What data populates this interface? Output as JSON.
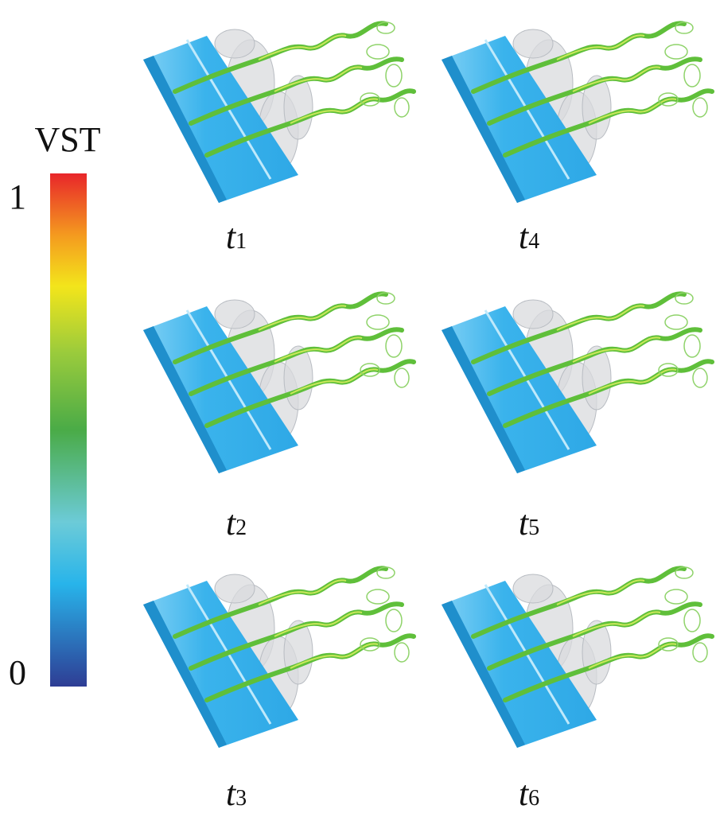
{
  "colorbar": {
    "title": "VST",
    "max": 1,
    "min": 0
  },
  "panels": [
    {
      "variable": "t",
      "index": "1"
    },
    {
      "variable": "t",
      "index": "4"
    },
    {
      "variable": "t",
      "index": "2"
    },
    {
      "variable": "t",
      "index": "5"
    },
    {
      "variable": "t",
      "index": "3"
    },
    {
      "variable": "t",
      "index": "6"
    }
  ]
}
